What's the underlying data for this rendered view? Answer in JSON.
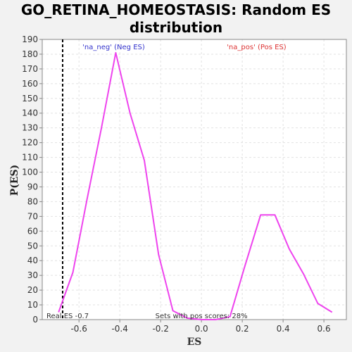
{
  "title_line1": "GO_RETINA_HOMEOSTASIS: Random ES",
  "title_line2": "distribution",
  "chart_data": {
    "type": "line",
    "title": "GO_RETINA_HOMEOSTASIS: Random ES distribution",
    "xlabel": "ES",
    "ylabel": "P(ES)",
    "xlim": [
      -0.78,
      0.71
    ],
    "ylim": [
      0,
      190
    ],
    "x_ticks": [
      -0.6,
      -0.4,
      -0.2,
      0.0,
      0.2,
      0.4,
      0.6
    ],
    "x_tick_labels": [
      "-0.6",
      "-0.4",
      "-0.2",
      "0.0",
      "0.2",
      "0.4",
      "0.6"
    ],
    "y_ticks": [
      0,
      10,
      20,
      30,
      40,
      50,
      60,
      70,
      80,
      90,
      100,
      110,
      120,
      130,
      140,
      150,
      160,
      170,
      180,
      190
    ],
    "grid": true,
    "series": [
      {
        "color": "#ee44ee",
        "x": [
          -0.7,
          -0.63,
          -0.56,
          -0.49,
          -0.42,
          -0.35,
          -0.28,
          -0.21,
          -0.14,
          -0.07,
          0.0,
          0.07,
          0.14,
          0.21,
          0.29,
          0.36,
          0.43,
          0.5,
          0.57,
          0.64
        ],
        "y": [
          5,
          32,
          82,
          130,
          181,
          140,
          108,
          44,
          6,
          1,
          0,
          0,
          2,
          35,
          71,
          71,
          48,
          31,
          11,
          5
        ]
      }
    ],
    "real_es": -0.68,
    "annotations": {
      "neg_label": "'na_neg' (Neg ES)",
      "pos_label": "'na_pos' (Pos ES)",
      "real_es_text": "Real ES -0.7",
      "pos_scores_text": "Sets with pos scores: 28%"
    },
    "colors": {
      "neg_label": "#3333cc",
      "pos_label": "#dd3333",
      "real_es_line": "#000000",
      "plot_bg": "#ffffff",
      "page_bg": "#f2f2f2"
    }
  }
}
